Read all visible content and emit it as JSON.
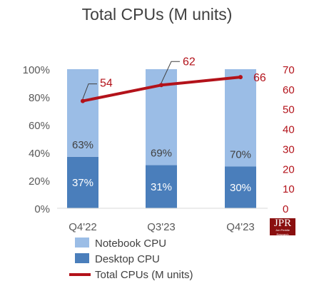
{
  "chart_data": {
    "type": "bar",
    "title": "Total CPUs (M units)",
    "categories": [
      "Q4'22",
      "Q3'23",
      "Q4'23"
    ],
    "series": [
      {
        "name": "Notebook CPU",
        "type": "bar",
        "axis": "left",
        "values": [
          63,
          69,
          70
        ],
        "labels": [
          "63%",
          "69%",
          "70%"
        ],
        "color": "#9bbde6"
      },
      {
        "name": "Desktop CPU",
        "type": "bar",
        "axis": "left",
        "values": [
          37,
          31,
          30
        ],
        "labels": [
          "37%",
          "31%",
          "30%"
        ],
        "color": "#4a7ebb"
      },
      {
        "name": "Total CPUs (M units)",
        "type": "line",
        "axis": "right",
        "values": [
          54,
          62,
          66
        ],
        "labels": [
          "54",
          "62",
          "66"
        ],
        "color": "#b3121a"
      }
    ],
    "left_axis": {
      "ylim": [
        0,
        100
      ],
      "ticks": [
        "0%",
        "20%",
        "40%",
        "60%",
        "80%",
        "100%"
      ],
      "tick_values": [
        0,
        20,
        40,
        60,
        80,
        100
      ]
    },
    "right_axis": {
      "ylim": [
        0,
        70
      ],
      "ticks": [
        "0",
        "10",
        "20",
        "30",
        "40",
        "50",
        "60",
        "70"
      ],
      "tick_values": [
        0,
        10,
        20,
        30,
        40,
        50,
        60,
        70
      ],
      "color": "#b3121a"
    },
    "legend": {
      "position": "bottom"
    },
    "stacked": true
  },
  "logo": {
    "main": "JPR",
    "sub": "Jon Peddie Research"
  }
}
